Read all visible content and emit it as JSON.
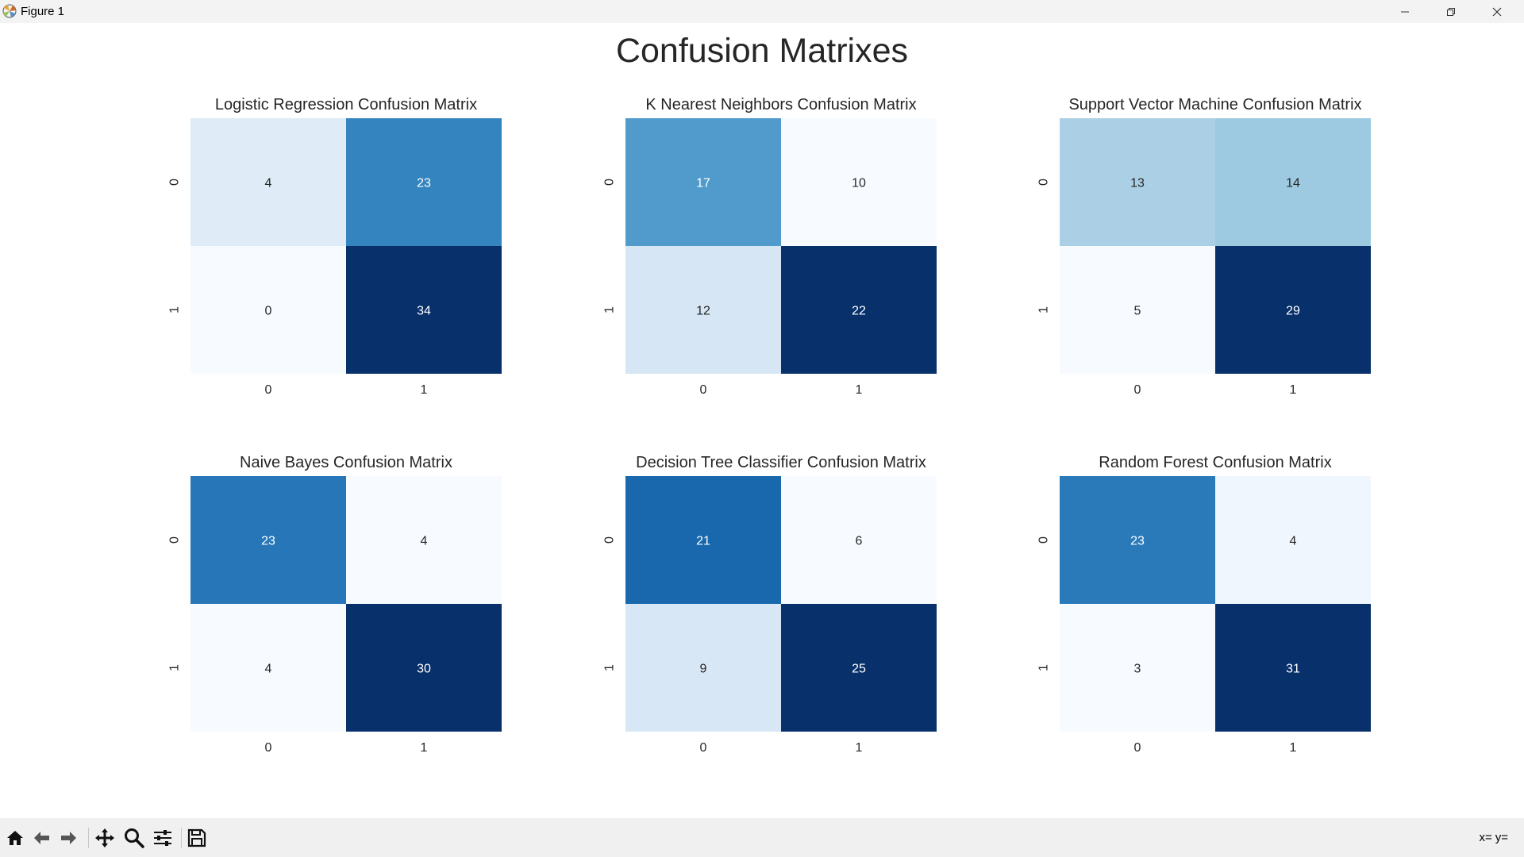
{
  "window": {
    "title": "Figure 1",
    "controls": {
      "minimize": "minimize-icon",
      "maximize": "restore-icon",
      "close": "close-icon"
    }
  },
  "figure": {
    "suptitle": "Confusion Matrixes"
  },
  "chart_data": [
    {
      "type": "heatmap",
      "title": "Logistic Regression Confusion Matrix",
      "x_ticks": [
        "0",
        "1"
      ],
      "y_ticks": [
        "0",
        "1"
      ],
      "values": [
        [
          4,
          23
        ],
        [
          0,
          34
        ]
      ],
      "colormap": "Blues",
      "annotations": true,
      "colorbar": false
    },
    {
      "type": "heatmap",
      "title": "K Nearest Neighbors Confusion Matrix",
      "x_ticks": [
        "0",
        "1"
      ],
      "y_ticks": [
        "0",
        "1"
      ],
      "values": [
        [
          17,
          10
        ],
        [
          12,
          22
        ]
      ],
      "colormap": "Blues",
      "annotations": true,
      "colorbar": false
    },
    {
      "type": "heatmap",
      "title": "Support Vector Machine Confusion Matrix",
      "x_ticks": [
        "0",
        "1"
      ],
      "y_ticks": [
        "0",
        "1"
      ],
      "values": [
        [
          13,
          14
        ],
        [
          5,
          29
        ]
      ],
      "colormap": "Blues",
      "annotations": true,
      "colorbar": false
    },
    {
      "type": "heatmap",
      "title": "Naive Bayes Confusion Matrix",
      "x_ticks": [
        "0",
        "1"
      ],
      "y_ticks": [
        "0",
        "1"
      ],
      "values": [
        [
          23,
          4
        ],
        [
          4,
          30
        ]
      ],
      "colormap": "Blues",
      "annotations": true,
      "colorbar": false
    },
    {
      "type": "heatmap",
      "title": "Decision Tree Classifier Confusion Matrix",
      "x_ticks": [
        "0",
        "1"
      ],
      "y_ticks": [
        "0",
        "1"
      ],
      "values": [
        [
          21,
          6
        ],
        [
          9,
          25
        ]
      ],
      "colormap": "Blues",
      "annotations": true,
      "colorbar": false
    },
    {
      "type": "heatmap",
      "title": "Random Forest Confusion Matrix",
      "x_ticks": [
        "0",
        "1"
      ],
      "y_ticks": [
        "0",
        "1"
      ],
      "values": [
        [
          23,
          4
        ],
        [
          3,
          31
        ]
      ],
      "colormap": "Blues",
      "annotations": true,
      "colorbar": false
    }
  ],
  "toolbar": {
    "tools": [
      "home-icon",
      "back-icon",
      "forward-icon",
      "pan-icon",
      "zoom-icon",
      "configure-subplots-icon",
      "save-icon"
    ],
    "coords_x": "x=",
    "coords_y": "y="
  }
}
